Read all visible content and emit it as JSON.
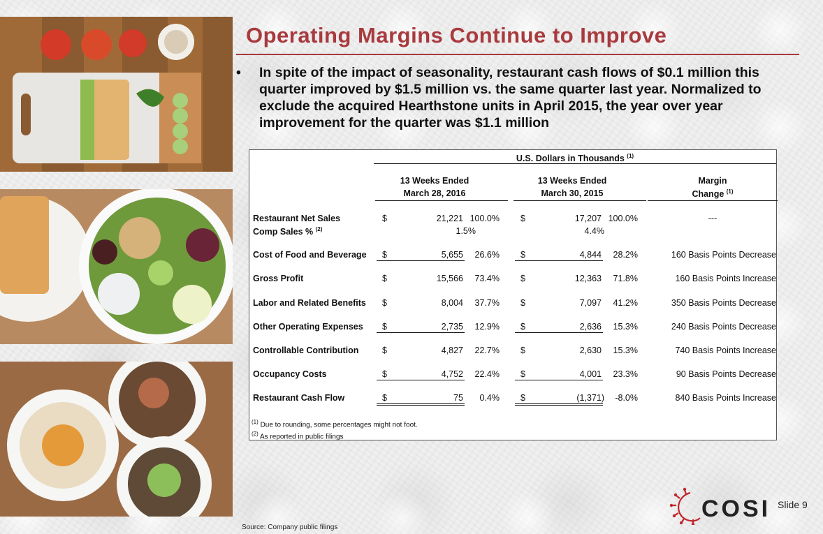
{
  "title": "Operating Margins Continue to Improve",
  "bullet": "In spite of the impact of seasonality, restaurant cash flows of $0.1 million this quarter improved by $1.5 million vs. the same quarter last year. Normalized to exclude the acquired Hearthstone units in April 2015, the year over year improvement for the quarter was $1.1 million",
  "table": {
    "units_header": "U.S. Dollars in Thousands",
    "units_sup": "(1)",
    "col1_line1": "13 Weeks Ended",
    "col1_line2": "March 28, 2016",
    "col2_line1": "13 Weeks Ended",
    "col2_line2": "March 30, 2015",
    "col3_line1": "Margin",
    "col3_line2": "Change",
    "col3_sup": "(1)",
    "currency": "$",
    "rows": [
      {
        "label": "Restaurant Net Sales",
        "v1": "21,221",
        "p1": "100.0%",
        "v2": "17,207",
        "p2": "100.0%",
        "change": "---"
      },
      {
        "label": "Comp Sales %",
        "label_sup": "(2)",
        "p1": "1.5%",
        "p2": "4.4%"
      },
      {
        "label": "Cost of Food and Beverage",
        "v1": "5,655",
        "p1": "26.6%",
        "v2": "4,844",
        "p2": "28.2%",
        "change": "160 Basis Points Decrease"
      },
      {
        "label": "Gross Profit",
        "v1": "15,566",
        "p1": "73.4%",
        "v2": "12,363",
        "p2": "71.8%",
        "change": "160 Basis Points Increase"
      },
      {
        "label": "Labor and Related Benefits",
        "v1": "8,004",
        "p1": "37.7%",
        "v2": "7,097",
        "p2": "41.2%",
        "change": "350 Basis Points Decrease"
      },
      {
        "label": "Other Operating Expenses",
        "v1": "2,735",
        "p1": "12.9%",
        "v2": "2,636",
        "p2": "15.3%",
        "change": "240 Basis Points Decrease"
      },
      {
        "label": "Controllable Contribution",
        "v1": "4,827",
        "p1": "22.7%",
        "v2": "2,630",
        "p2": "15.3%",
        "change": "740 Basis Points Increase"
      },
      {
        "label": "Occupancy Costs",
        "v1": "4,752",
        "p1": "22.4%",
        "v2": "4,001",
        "p2": "23.3%",
        "change": "90 Basis Points Decrease"
      },
      {
        "label": "Restaurant Cash Flow",
        "v1": "75",
        "p1": "0.4%",
        "v2": "(1,371)",
        "p2": "-8.0%",
        "change": "840 Basis Points Increase"
      }
    ],
    "footnote1_sup": "(1)",
    "footnote1": "Due to rounding, some percentages might not foot.",
    "footnote2_sup": "(2)",
    "footnote2": "As reported in public filings"
  },
  "logo_text": "COSI",
  "slide_label": "Slide 9",
  "source": "Source: Company public filings",
  "colors": {
    "accent": "#a83a3e",
    "logo_red": "#c0272d"
  }
}
